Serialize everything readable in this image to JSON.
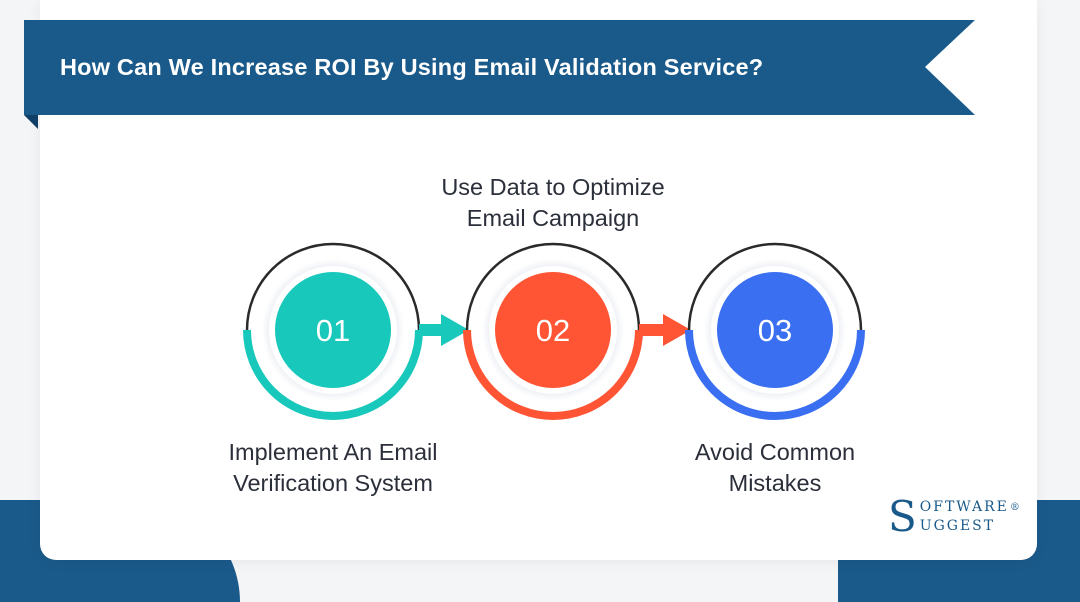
{
  "title": "How Can We Increase ROI By Using Email Validation Service?",
  "colors": {
    "banner": "#1a5a8a",
    "step1": "#17c8bb",
    "step2": "#ff5535",
    "step3": "#3a6ff2",
    "text": "#2b2f3a"
  },
  "steps": [
    {
      "number": "01",
      "label_line1": "Implement An Email",
      "label_line2": "Verification System",
      "color": "#17c8bb"
    },
    {
      "number": "02",
      "label_line1": "Use Data to Optimize",
      "label_line2": "Email Campaign",
      "color": "#ff5535"
    },
    {
      "number": "03",
      "label_line1": "Avoid Common",
      "label_line2": "Mistakes",
      "color": "#3a6ff2"
    }
  ],
  "logo": {
    "line1": "SOFTWARE",
    "line2": "SUGGEST",
    "registered": "®"
  }
}
